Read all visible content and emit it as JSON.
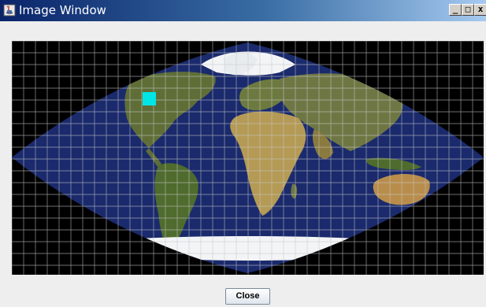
{
  "window": {
    "title": "Image Window",
    "controls": {
      "minimize": "_",
      "maximize": "□",
      "close": "x"
    }
  },
  "map": {
    "projection_icon": "sinusoidal-world-map",
    "grid": true,
    "marker_color": "#00e5e5",
    "ocean_color": "#1a2a6c",
    "land_color": "#5f6e37",
    "ice_color": "#f2f4f6",
    "background_color": "#000000"
  },
  "footer": {
    "close_label": "Close"
  }
}
